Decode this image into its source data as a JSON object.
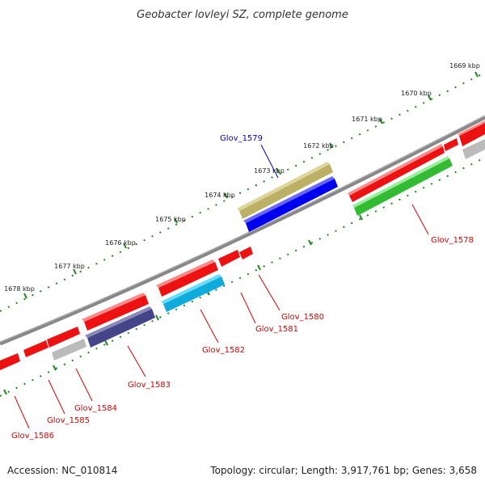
{
  "title": "Geobacter lovleyi SZ, complete genome",
  "footer": {
    "accession": "Accession: NC_010814",
    "summary": "Topology: circular; Length: 3,917,761 bp; Genes: 3,658"
  },
  "ticks": [
    "1669 kbp",
    "1670 kbp",
    "1671 kbp",
    "1672 kbp",
    "1673 kbp",
    "1674 kbp",
    "1675 kbp",
    "1676 kbp",
    "1677 kbp",
    "1678 kbp"
  ],
  "genes": [
    {
      "id": "Glov_1579",
      "label_color": "#0000cc"
    },
    {
      "id": "Glov_1578",
      "label_color": "#dd0000"
    },
    {
      "id": "Glov_1580",
      "label_color": "#dd0000"
    },
    {
      "id": "Glov_1581",
      "label_color": "#dd0000"
    },
    {
      "id": "Glov_1582",
      "label_color": "#dd0000"
    },
    {
      "id": "Glov_1583",
      "label_color": "#dd0000"
    },
    {
      "id": "Glov_1584",
      "label_color": "#dd0000"
    },
    {
      "id": "Glov_1585",
      "label_color": "#dd0000"
    },
    {
      "id": "Glov_1586",
      "label_color": "#dd0000"
    }
  ],
  "colors": {
    "cds": "#ee1111",
    "other": "#bbbbbb",
    "backbone": "#888888",
    "ticks": "#228822",
    "tan": "#bbb066",
    "blue": "#0000ee",
    "green": "#33bb33",
    "cyan": "#11aadd",
    "navy": "#444488"
  }
}
